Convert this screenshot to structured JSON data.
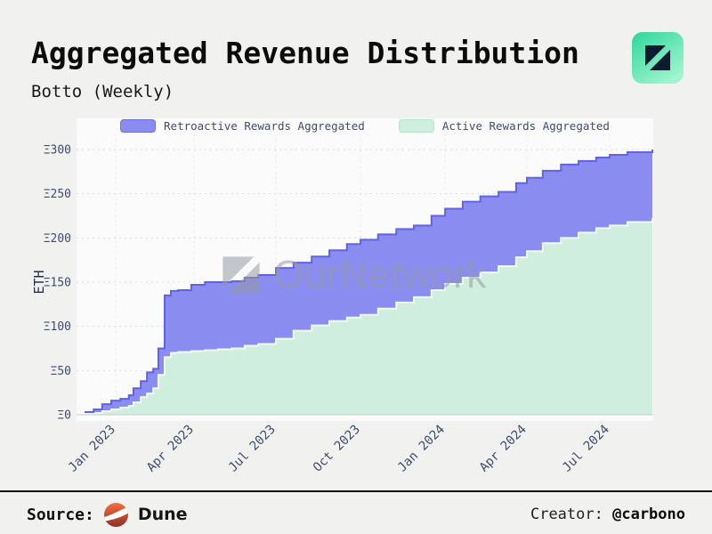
{
  "header": {
    "title": "Aggregated Revenue Distribution",
    "subtitle": "Botto (Weekly)"
  },
  "watermark": {
    "text": "OurNetwork"
  },
  "footer": {
    "source_label": "Source:",
    "source_name": "Dune",
    "creator_label": "Creator:",
    "creator_handle": "@carbono"
  },
  "colors": {
    "background": "#f1f1ef",
    "panel": "#fbfbfc",
    "axis_text": "#3e4c6e",
    "retroactive_fill": "#8a8cf0",
    "retroactive_stroke": "#5f63e7",
    "active_fill": "#cfeedd",
    "active_stroke": "#f1fbf6",
    "logo_green_top": "#2fd69b",
    "logo_green_bottom": "#9ff5cf",
    "dune_orange": "#f3703f"
  },
  "chart_data": {
    "type": "area",
    "stacked": true,
    "title": "Aggregated Revenue Distribution",
    "subtitle": "Botto (Weekly)",
    "xlabel": "",
    "ylabel": "ETH",
    "ylim": [
      0,
      300
    ],
    "grid": true,
    "legend_position": "top",
    "y_ticks": [
      {
        "v": 0,
        "label": "Ξ0"
      },
      {
        "v": 50,
        "label": "Ξ50"
      },
      {
        "v": 100,
        "label": "Ξ100"
      },
      {
        "v": 150,
        "label": "Ξ150"
      },
      {
        "v": 200,
        "label": "Ξ200"
      },
      {
        "v": 250,
        "label": "Ξ250"
      },
      {
        "v": 300,
        "label": "Ξ300"
      }
    ],
    "x_ticks": [
      {
        "pos": 5.5,
        "label": "Jan 2023"
      },
      {
        "pos": 19.3,
        "label": "Apr 2023"
      },
      {
        "pos": 33.7,
        "label": "Jul 2023"
      },
      {
        "pos": 48.6,
        "label": "Oct 2023"
      },
      {
        "pos": 63.5,
        "label": "Jan 2024"
      },
      {
        "pos": 77.9,
        "label": "Apr 2024"
      },
      {
        "pos": 92.5,
        "label": "Jul 2024"
      }
    ],
    "x": [
      0,
      1.6,
      3.1,
      4.7,
      6.3,
      7.8,
      8.6,
      9.9,
      11,
      12.1,
      13,
      14.1,
      15.2,
      16.5,
      18.8,
      21.2,
      23.5,
      25.9,
      28.2,
      30.6,
      33.7,
      36.8,
      40,
      43.1,
      46.2,
      48.6,
      51.7,
      54.9,
      58,
      61.1,
      63.5,
      66.6,
      69.7,
      72.9,
      76,
      77.9,
      80.7,
      83.9,
      87,
      90.1,
      92.5,
      95.6,
      100
    ],
    "series": [
      {
        "name": "Retroactive Rewards Aggregated",
        "fill": "#8a8cf0",
        "stroke": "#5f63e7",
        "cumulative": [
          3,
          6,
          12,
          16,
          18,
          22,
          30,
          38,
          48,
          52,
          75,
          135,
          140,
          141,
          147,
          150,
          150,
          151,
          155,
          158,
          166,
          172,
          179,
          186,
          193,
          198,
          204,
          210,
          214,
          225,
          233,
          241,
          247,
          252,
          262,
          268,
          276,
          283,
          287,
          291,
          294,
          297,
          300
        ]
      },
      {
        "name": "Active Rewards Aggregated",
        "fill": "#cfeedd",
        "stroke": "#f1fbf6",
        "cumulative": [
          1,
          2,
          4,
          6,
          8,
          10,
          14,
          20,
          24,
          30,
          45,
          65,
          70,
          71,
          72,
          73,
          74,
          75,
          78,
          80,
          86,
          95,
          101,
          106,
          110,
          113,
          120,
          127,
          133,
          141,
          148,
          155,
          161,
          168,
          178,
          185,
          194,
          200,
          206,
          211,
          214,
          218,
          222
        ]
      }
    ]
  }
}
